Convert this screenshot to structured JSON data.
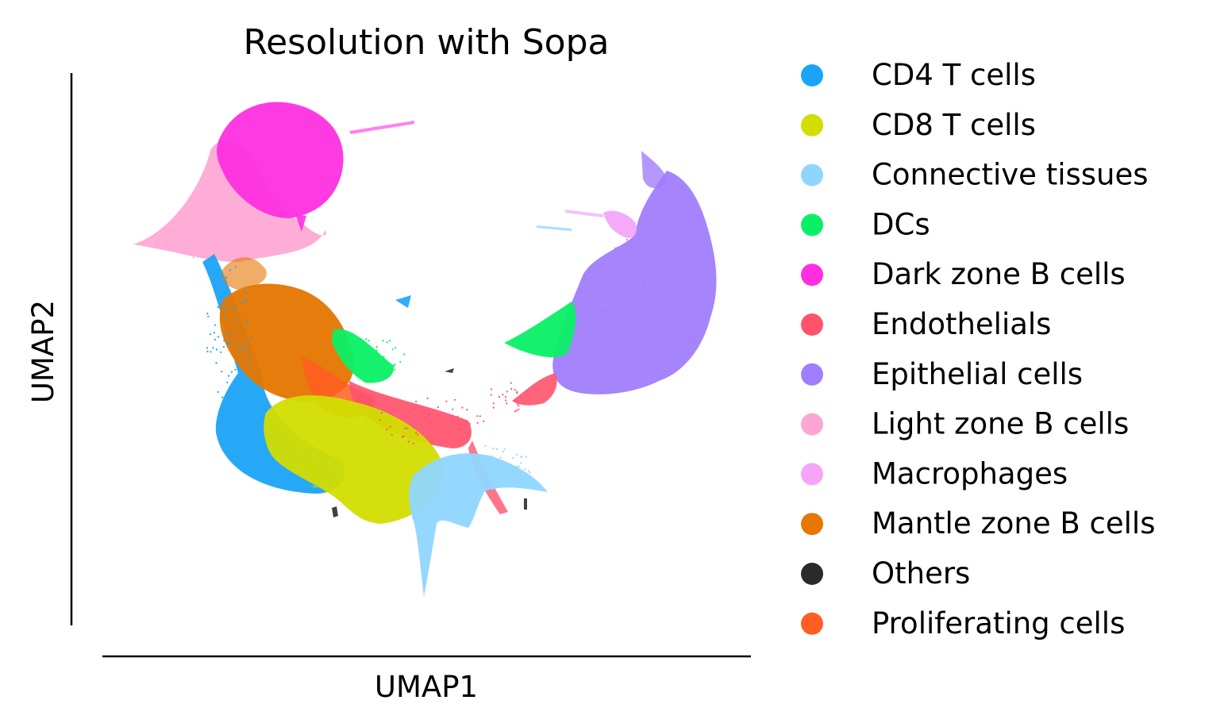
{
  "chart_data": {
    "type": "scatter",
    "title": "Resolution with Sopa",
    "xlabel": "UMAP1",
    "ylabel": "UMAP2",
    "xticks_visible": false,
    "yticks_visible": false,
    "grid": false,
    "legend_position": "right",
    "series": [
      {
        "name": "CD4 T cells",
        "color": "#1ba3f7"
      },
      {
        "name": "CD8 T cells",
        "color": "#d2dd00"
      },
      {
        "name": "Connective tissues",
        "color": "#8fd6ff"
      },
      {
        "name": "DCs",
        "color": "#0af065"
      },
      {
        "name": "Dark zone B cells",
        "color": "#fe2fe0"
      },
      {
        "name": "Endothelials",
        "color": "#ff536c"
      },
      {
        "name": "Epithelial cells",
        "color": "#a07dfc"
      },
      {
        "name": "Light zone B cells",
        "color": "#fda6d3"
      },
      {
        "name": "Macrophages",
        "color": "#f5a4f8"
      },
      {
        "name": "Mantle zone B cells",
        "color": "#e57702"
      },
      {
        "name": "Others",
        "color": "#2b2b2b"
      },
      {
        "name": "Proliferating cells",
        "color": "#ff5e22"
      }
    ]
  }
}
